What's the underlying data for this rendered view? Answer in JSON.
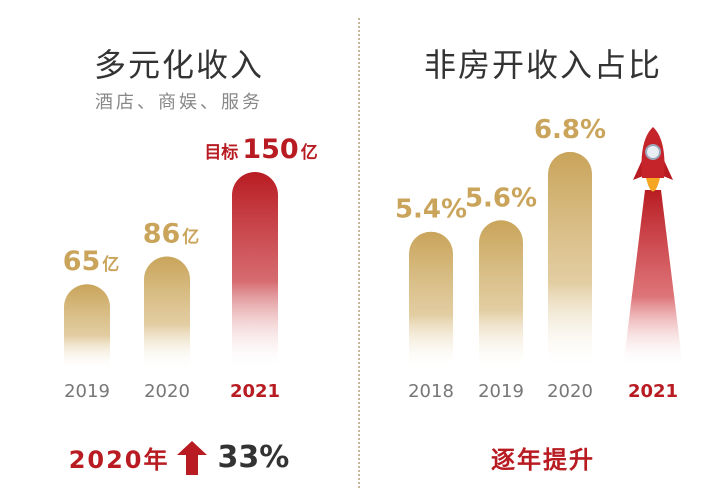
{
  "colors": {
    "gold": "#c9a45a",
    "red": "#b81c22",
    "dark_text": "#333333",
    "axis_text": "#777777"
  },
  "left": {
    "title": "多元化收入",
    "subtitle": "酒店、商娱、服务",
    "footer_year": "2020年",
    "footer_value": "33%",
    "footer_icon": "up-arrow-icon"
  },
  "right": {
    "title": "非房开收入占比",
    "footer_text": "逐年提升",
    "rocket_icon": "rocket-icon"
  },
  "chart_data": [
    {
      "type": "bar",
      "title": "多元化收入",
      "subtitle": "酒店、商娱、服务",
      "categories": [
        "2019",
        "2020",
        "2021"
      ],
      "values": [
        65,
        86,
        150
      ],
      "value_labels": [
        "65",
        "86",
        "150"
      ],
      "unit": "亿",
      "target_prefix": "目标",
      "highlight_category": "2021",
      "colors": [
        "#c9a45a",
        "#c9a45a",
        "#b81c22"
      ]
    },
    {
      "type": "bar",
      "title": "非房开收入占比",
      "categories": [
        "2018",
        "2019",
        "2020",
        "2021"
      ],
      "values": [
        5.4,
        5.6,
        6.8,
        null
      ],
      "value_labels": [
        "5.4%",
        "5.6%",
        "6.8%",
        ""
      ],
      "highlight_category": "2021",
      "colors": [
        "#c9a45a",
        "#c9a45a",
        "#c9a45a",
        "#b81c22"
      ]
    }
  ]
}
